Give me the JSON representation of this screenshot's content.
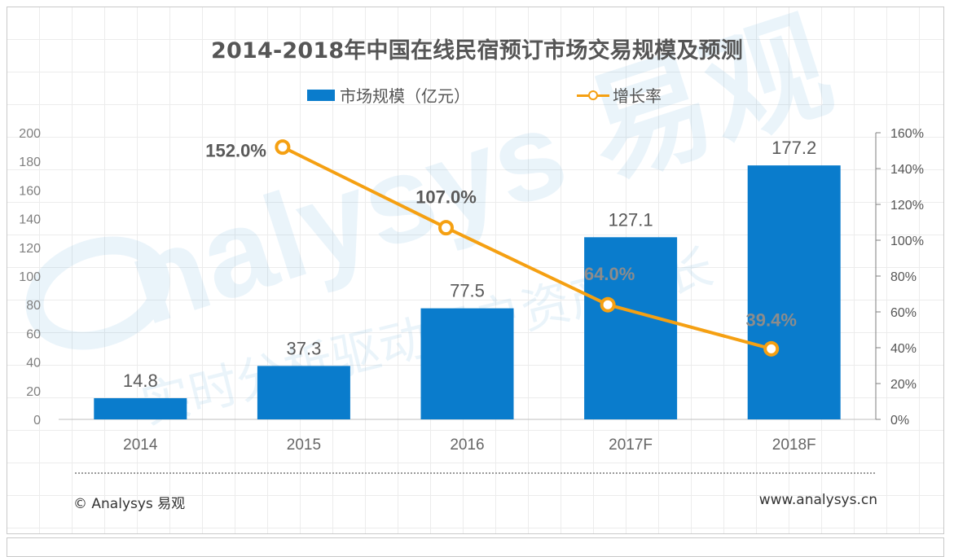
{
  "title": "2014-2018年中国在线民宿预订市场交易规模及预测",
  "legend": {
    "bar_label": "市场规模（亿元）",
    "line_label": "增长率"
  },
  "footer": {
    "copyright": "© Analysys 易观",
    "website": "www.analysys.cn"
  },
  "watermark": {
    "brand": "nalysys 易观",
    "tagline": "实时分析驱动用户资产成长"
  },
  "colors": {
    "bar": "#0a7ccc",
    "line": "#f5a012",
    "text": "#555555"
  },
  "chart_data": {
    "type": "bar",
    "categories": [
      "2014",
      "2015",
      "2016",
      "2017F",
      "2018F"
    ],
    "series": [
      {
        "name": "市场规模（亿元）",
        "type": "bar",
        "axis": "left",
        "values": [
          14.8,
          37.3,
          77.5,
          127.1,
          177.2
        ],
        "labels": [
          "14.8",
          "37.3",
          "77.5",
          "127.1",
          "177.2"
        ]
      },
      {
        "name": "增长率",
        "type": "line",
        "axis": "right",
        "values": [
          null,
          152.0,
          107.0,
          64.0,
          39.4
        ],
        "labels": [
          "",
          "152.0%",
          "107.0%",
          "64.0%",
          "39.4%"
        ]
      }
    ],
    "left_axis": {
      "min": 0,
      "max": 200,
      "step": 20,
      "ticks": [
        "0",
        "20",
        "40",
        "60",
        "80",
        "100",
        "120",
        "140",
        "160",
        "180",
        "200"
      ]
    },
    "right_axis": {
      "min": 0,
      "max": 160,
      "step": 20,
      "ticks": [
        "0%",
        "20%",
        "40%",
        "60%",
        "80%",
        "100%",
        "120%",
        "140%",
        "160%"
      ]
    },
    "grid": false,
    "legend_position": "top-center"
  }
}
